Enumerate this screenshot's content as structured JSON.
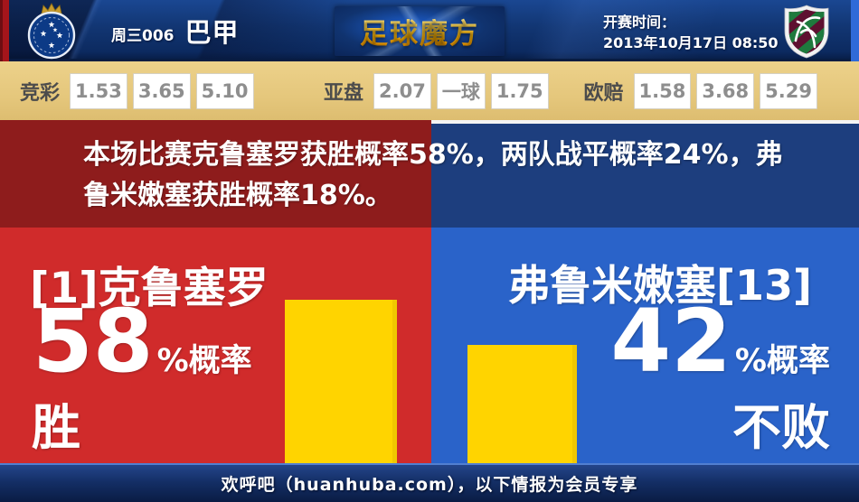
{
  "header": {
    "match_week": "周三006",
    "league": "巴甲",
    "site_logo_text": "足球魔方",
    "kickoff_label": "开赛时间：",
    "kickoff_time": "2013年10月17日 08:50",
    "home_crest": "cruzeiro-crest",
    "away_crest": "fluminense-crest"
  },
  "odds": {
    "groups": [
      {
        "label": "竞彩",
        "values": [
          "1.53",
          "3.65",
          "5.10"
        ]
      },
      {
        "label": "亚盘",
        "values": [
          "2.07",
          "一球",
          "1.75"
        ]
      },
      {
        "label": "欧赔",
        "values": [
          "1.58",
          "3.68",
          "5.29"
        ]
      }
    ]
  },
  "summary_text": "本场比赛克鲁塞罗获胜概率58%，两队战平概率24%，弗鲁米嫩塞获胜概率18%。",
  "home": {
    "name": "[1]克鲁塞罗",
    "percent": "58",
    "percent_suffix": "%概率",
    "outcome": "胜"
  },
  "away": {
    "name": "弗鲁米嫩塞[13]",
    "percent": "42",
    "percent_suffix": "%概率",
    "outcome": "不败"
  },
  "chart_data": {
    "type": "bar",
    "categories": [
      "克鲁塞罗 胜",
      "弗鲁米嫩塞 不败"
    ],
    "values": [
      58,
      42
    ],
    "unit": "%",
    "bar_color": "#ffd400",
    "annotations": {
      "home_win_pct": 58,
      "draw_pct": 24,
      "away_win_pct": 18
    }
  },
  "footer_text": "欢呼吧（huanhuba.com），以下情报为会员专享",
  "colors": {
    "header_navy": "#123673",
    "odds_tan": "#e5c77c",
    "summary_red": "#8e1c1c",
    "summary_blue": "#1d3e7e",
    "panel_red": "#d02b2b",
    "panel_blue": "#2a63c9",
    "bar_yellow": "#ffd400",
    "logo_gold": "#ffc400"
  }
}
